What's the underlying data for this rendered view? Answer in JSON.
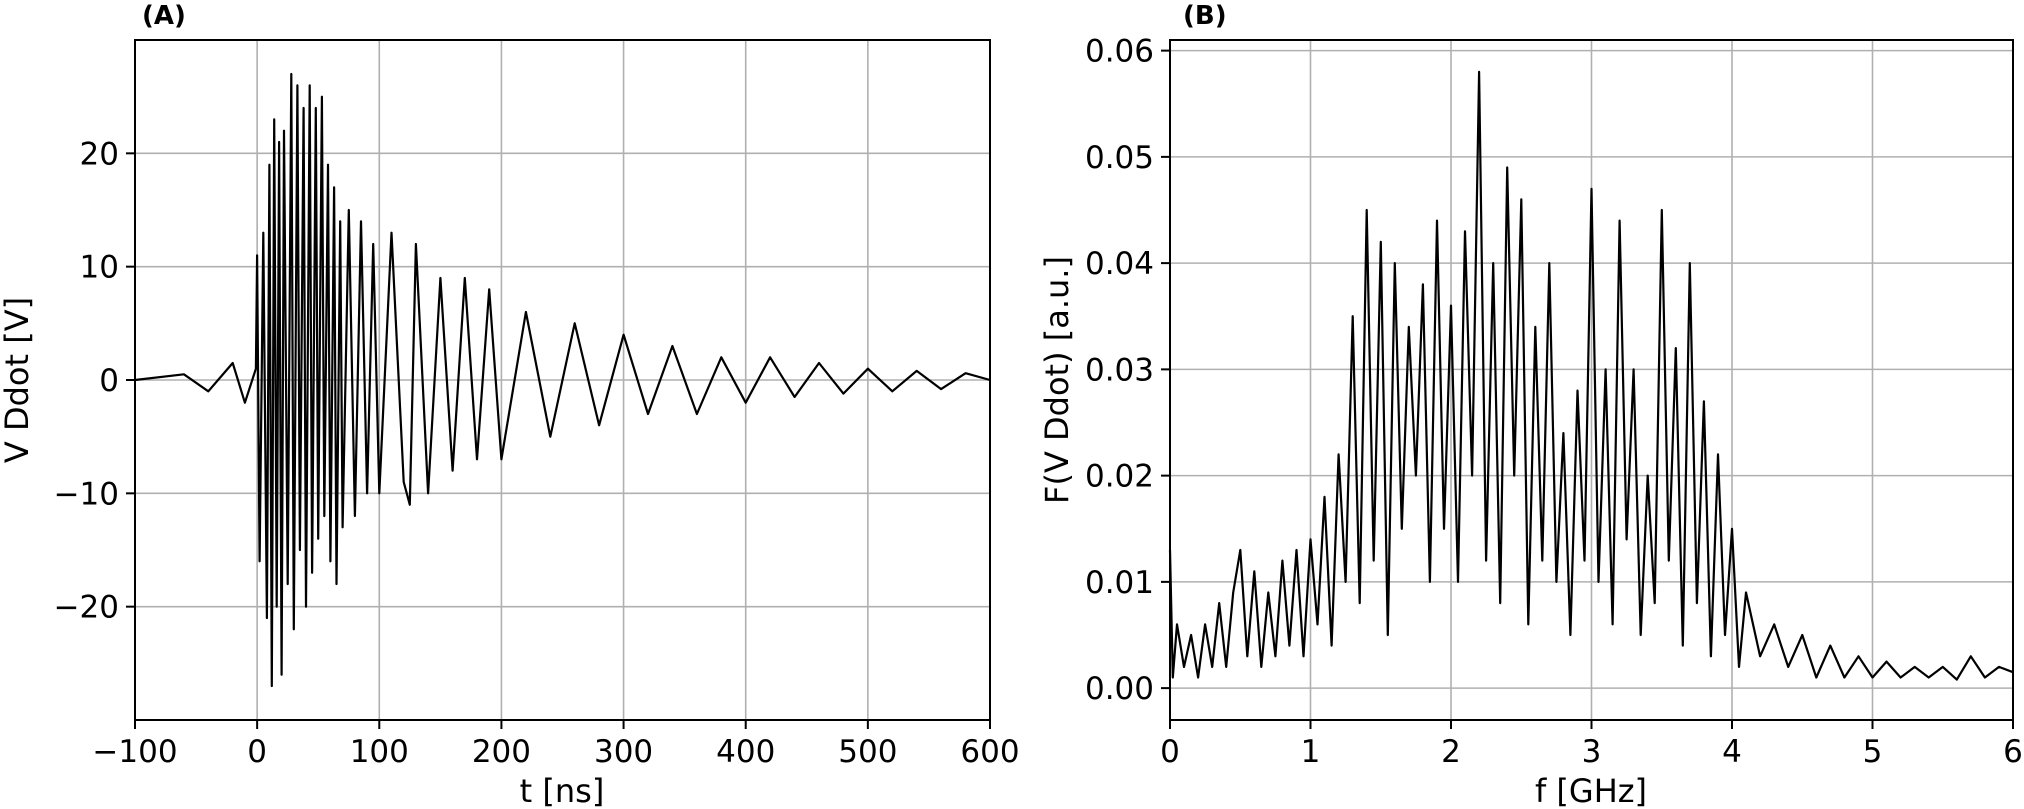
{
  "chart_data": [
    {
      "type": "line",
      "panel_label": "(A)",
      "xlabel": "t [ns]",
      "ylabel": "V Ddot [V]",
      "xlim": [
        -100,
        600
      ],
      "ylim": [
        -30,
        30
      ],
      "xticks": [
        -100,
        0,
        100,
        200,
        300,
        400,
        500,
        600
      ],
      "xtick_labels": [
        "−100",
        "0",
        "100",
        "200",
        "300",
        "400",
        "500",
        "600"
      ],
      "yticks": [
        -20,
        -10,
        0,
        10,
        20
      ],
      "ytick_labels": [
        "−20",
        "−10",
        "0",
        "10",
        "20"
      ],
      "grid": true,
      "series": [
        {
          "color": "#000000",
          "x": [
            -100,
            -60,
            -40,
            -20,
            -10,
            -1,
            0,
            2,
            5,
            8,
            10,
            12,
            14,
            16,
            18,
            20,
            22,
            25,
            28,
            30,
            33,
            35,
            38,
            40,
            43,
            45,
            48,
            50,
            53,
            55,
            58,
            60,
            63,
            65,
            68,
            70,
            75,
            80,
            85,
            90,
            95,
            100,
            110,
            120,
            125,
            130,
            140,
            150,
            160,
            170,
            180,
            190,
            200,
            220,
            240,
            260,
            280,
            300,
            320,
            340,
            360,
            380,
            400,
            420,
            440,
            460,
            480,
            500,
            520,
            540,
            560,
            580,
            600
          ],
          "y": [
            0,
            0.5,
            -1,
            1.5,
            -2,
            1,
            11,
            -16,
            13,
            -21,
            19,
            -27,
            23,
            -20,
            21,
            -26,
            22,
            -18,
            27,
            -22,
            26,
            -15,
            24,
            -20,
            26,
            -17,
            24,
            -14,
            25,
            -12,
            19,
            -16,
            17,
            -18,
            14,
            -13,
            15,
            -12,
            14,
            -10,
            12,
            -10,
            13,
            -9,
            -11,
            12,
            -10,
            9,
            -8,
            9,
            -7,
            8,
            -7,
            6,
            -5,
            5,
            -4,
            4,
            -3,
            3,
            -3,
            2,
            -2,
            2,
            -1.5,
            1.5,
            -1.2,
            1,
            -1,
            0.8,
            -0.8,
            0.6,
            0
          ]
        }
      ]
    },
    {
      "type": "line",
      "panel_label": "(B)",
      "xlabel": "f [GHz]",
      "ylabel": "F(V Ddot) [a.u.]",
      "xlim": [
        0,
        6
      ],
      "ylim": [
        -0.003,
        0.061
      ],
      "xticks": [
        0,
        1,
        2,
        3,
        4,
        5,
        6
      ],
      "xtick_labels": [
        "0",
        "1",
        "2",
        "3",
        "4",
        "5",
        "6"
      ],
      "yticks": [
        0.0,
        0.01,
        0.02,
        0.03,
        0.04,
        0.05,
        0.06
      ],
      "ytick_labels": [
        "0.00",
        "0.01",
        "0.02",
        "0.03",
        "0.04",
        "0.05",
        "0.06"
      ],
      "grid": true,
      "series": [
        {
          "color": "#000000",
          "x": [
            0,
            0.02,
            0.05,
            0.1,
            0.15,
            0.2,
            0.25,
            0.3,
            0.35,
            0.4,
            0.45,
            0.5,
            0.55,
            0.6,
            0.65,
            0.7,
            0.75,
            0.8,
            0.85,
            0.9,
            0.95,
            1.0,
            1.05,
            1.1,
            1.15,
            1.2,
            1.25,
            1.3,
            1.35,
            1.4,
            1.45,
            1.5,
            1.55,
            1.6,
            1.65,
            1.7,
            1.75,
            1.8,
            1.85,
            1.9,
            1.95,
            2.0,
            2.05,
            2.1,
            2.15,
            2.2,
            2.25,
            2.3,
            2.35,
            2.4,
            2.45,
            2.5,
            2.55,
            2.6,
            2.65,
            2.7,
            2.75,
            2.8,
            2.85,
            2.9,
            2.95,
            3.0,
            3.05,
            3.1,
            3.15,
            3.2,
            3.25,
            3.3,
            3.35,
            3.4,
            3.45,
            3.5,
            3.55,
            3.6,
            3.65,
            3.7,
            3.75,
            3.8,
            3.85,
            3.9,
            3.95,
            4.0,
            4.05,
            4.1,
            4.2,
            4.3,
            4.4,
            4.5,
            4.6,
            4.7,
            4.8,
            4.9,
            5.0,
            5.1,
            5.2,
            5.3,
            5.4,
            5.5,
            5.6,
            5.7,
            5.8,
            5.9,
            6.0
          ],
          "y": [
            0.013,
            0.001,
            0.006,
            0.002,
            0.005,
            0.001,
            0.006,
            0.002,
            0.008,
            0.002,
            0.009,
            0.013,
            0.003,
            0.011,
            0.002,
            0.009,
            0.003,
            0.012,
            0.004,
            0.013,
            0.003,
            0.014,
            0.006,
            0.018,
            0.004,
            0.022,
            0.01,
            0.035,
            0.008,
            0.045,
            0.012,
            0.042,
            0.005,
            0.04,
            0.015,
            0.034,
            0.02,
            0.038,
            0.01,
            0.044,
            0.015,
            0.036,
            0.01,
            0.043,
            0.02,
            0.058,
            0.012,
            0.04,
            0.008,
            0.049,
            0.02,
            0.046,
            0.006,
            0.034,
            0.012,
            0.04,
            0.01,
            0.024,
            0.005,
            0.028,
            0.012,
            0.047,
            0.01,
            0.03,
            0.006,
            0.044,
            0.014,
            0.03,
            0.005,
            0.02,
            0.008,
            0.045,
            0.012,
            0.032,
            0.004,
            0.04,
            0.008,
            0.027,
            0.003,
            0.022,
            0.005,
            0.015,
            0.002,
            0.009,
            0.003,
            0.006,
            0.002,
            0.005,
            0.001,
            0.004,
            0.001,
            0.003,
            0.001,
            0.0025,
            0.001,
            0.002,
            0.001,
            0.002,
            0.0008,
            0.003,
            0.001,
            0.002,
            0.0015
          ]
        }
      ]
    }
  ]
}
